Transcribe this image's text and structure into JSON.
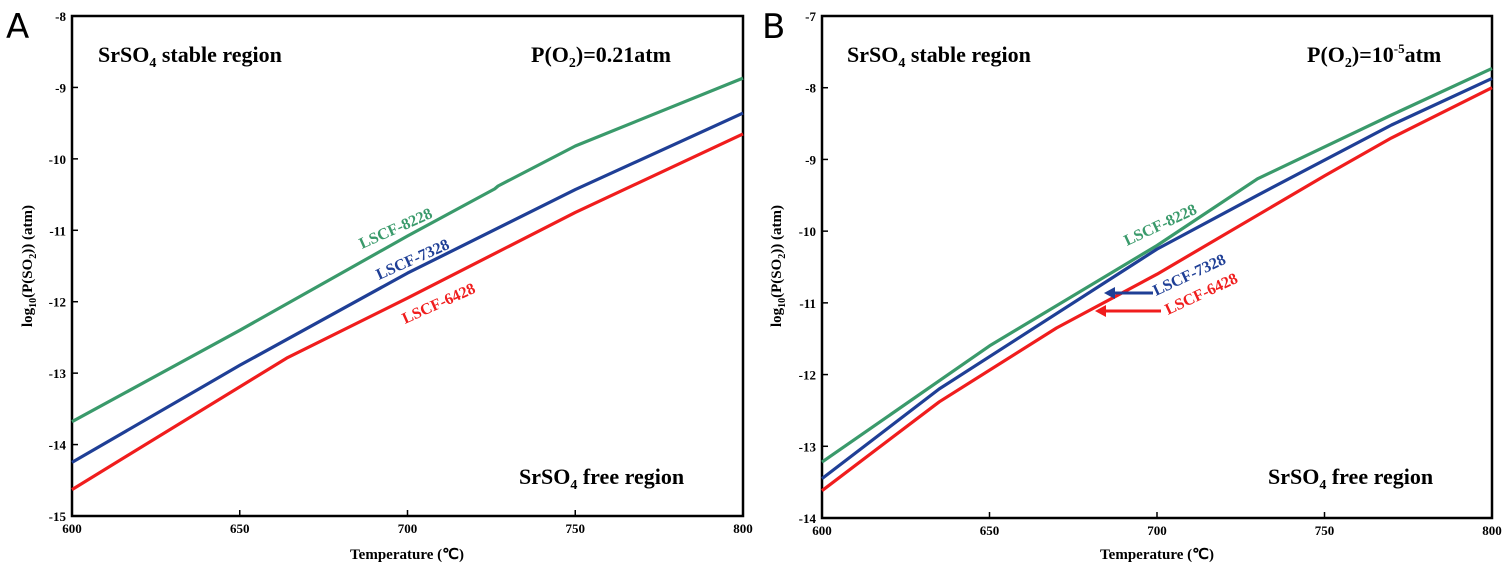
{
  "colors": {
    "green": "#3a9a6b",
    "blue": "#1f3f96",
    "red": "#f01d1d"
  },
  "chart_data": [
    {
      "panel": "A",
      "type": "line",
      "xlabel": "Temperature (℃)",
      "ylabel": "log10(P(SO2)) (atm)",
      "xlim": [
        600,
        800
      ],
      "ylim": [
        -15,
        -8
      ],
      "xticks": [
        600,
        650,
        700,
        750,
        800
      ],
      "yticks": [
        -15,
        -14,
        -13,
        -12,
        -11,
        -10,
        -9,
        -8
      ],
      "annotations": {
        "top_left": "SrSO4 stable region",
        "top_right": "P(O2)=0.21atm",
        "bottom_right": "SrSO4 free region"
      },
      "series": [
        {
          "name": "LSCF-8228",
          "color": "green",
          "x": [
            600,
            650,
            700,
            726,
            727,
            750,
            800
          ],
          "y": [
            -13.68,
            -12.4,
            -11.08,
            -10.42,
            -10.38,
            -9.82,
            -8.87
          ]
        },
        {
          "name": "LSCF-7328",
          "color": "blue",
          "x": [
            600,
            650,
            700,
            750,
            800
          ],
          "y": [
            -14.25,
            -12.89,
            -11.6,
            -10.43,
            -9.36
          ]
        },
        {
          "name": "LSCF-6428",
          "color": "red",
          "x": [
            600,
            664,
            700,
            750,
            800
          ],
          "y": [
            -14.63,
            -12.79,
            -11.95,
            -10.75,
            -9.65
          ]
        }
      ]
    },
    {
      "panel": "B",
      "type": "line",
      "xlabel": "Temperature (℃)",
      "ylabel": "log10(P(SO2)) (atm)",
      "xlim": [
        600,
        800
      ],
      "ylim": [
        -14,
        -7
      ],
      "xticks": [
        600,
        650,
        700,
        750,
        800
      ],
      "yticks": [
        -14,
        -13,
        -12,
        -11,
        -10,
        -9,
        -8,
        -7
      ],
      "annotations": {
        "top_left": "SrSO4 stable region",
        "top_right": "P(O2)=10-5atm",
        "bottom_right": "SrSO4 free region"
      },
      "series": [
        {
          "name": "LSCF-8228",
          "color": "green",
          "x": [
            600,
            650,
            700,
            730,
            770,
            800
          ],
          "y": [
            -13.22,
            -11.6,
            -10.2,
            -9.27,
            -8.38,
            -7.73
          ]
        },
        {
          "name": "LSCF-7328",
          "color": "blue",
          "x": [
            600,
            635,
            700,
            730,
            770,
            800
          ],
          "y": [
            -13.45,
            -12.2,
            -10.25,
            -9.5,
            -8.52,
            -7.87
          ]
        },
        {
          "name": "LSCF-6428",
          "color": "red",
          "x": [
            600,
            635,
            670,
            700,
            750,
            770,
            800
          ],
          "y": [
            -13.62,
            -12.38,
            -11.35,
            -10.6,
            -9.23,
            -8.7,
            -8.0
          ]
        }
      ]
    }
  ]
}
